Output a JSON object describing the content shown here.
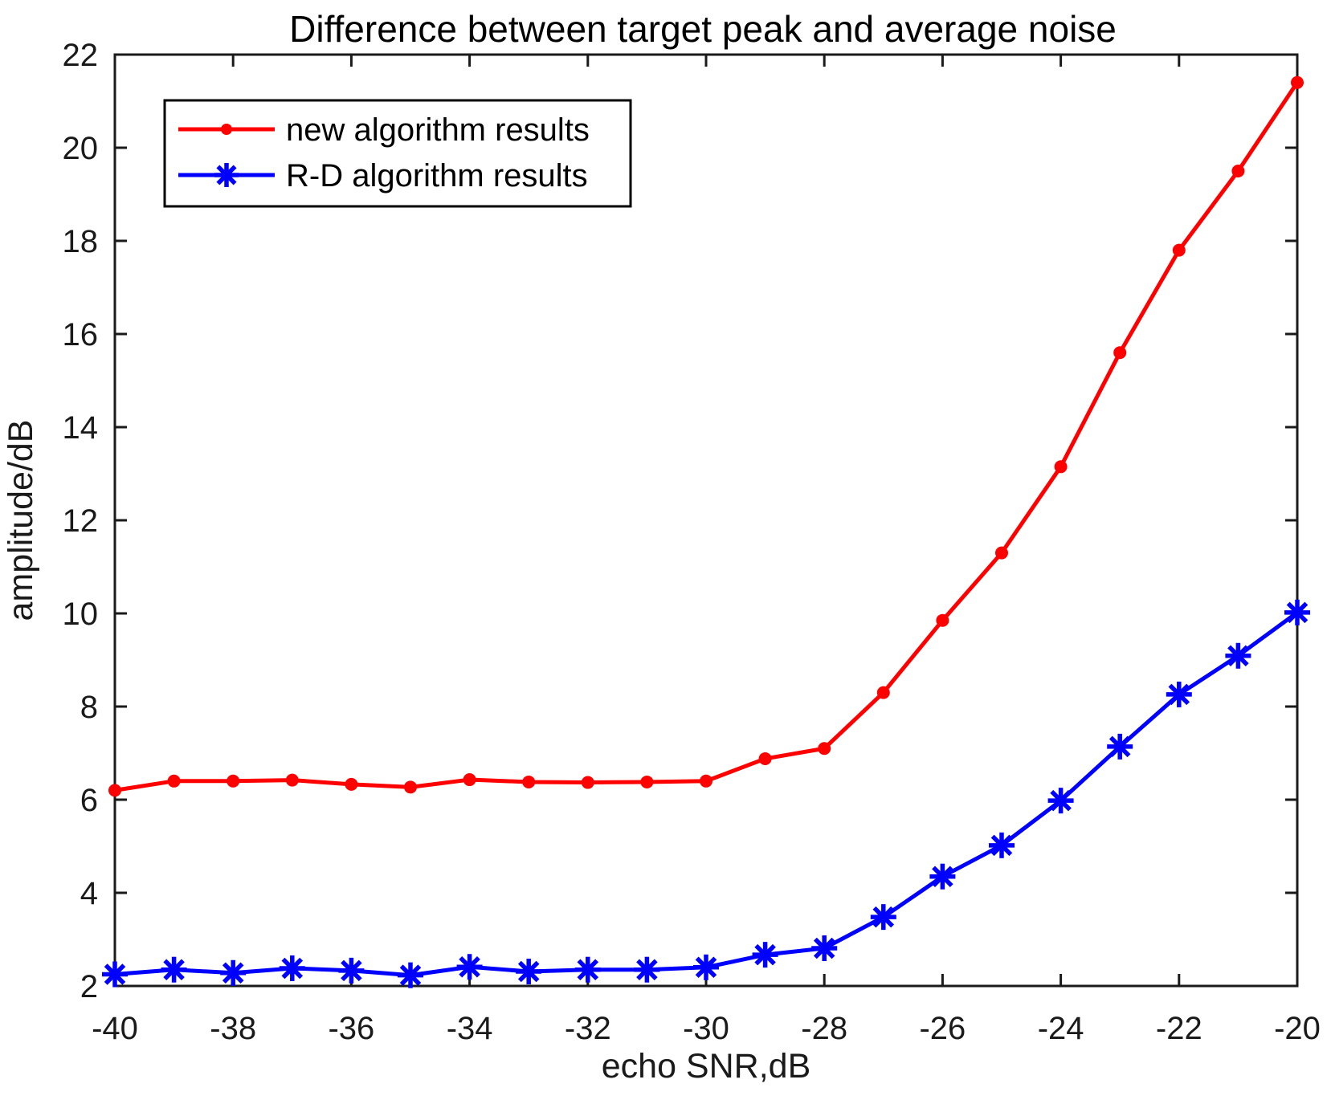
{
  "figure": {
    "title": "Difference between target peak and average noise",
    "xlabel": "echo SNR,dB",
    "ylabel": "amplitude/dB"
  },
  "chart_data": {
    "type": "line",
    "title": "Difference between target peak and average noise",
    "xlabel": "echo SNR,dB",
    "ylabel": "amplitude/dB",
    "x": [
      -40,
      -39,
      -38,
      -37,
      -36,
      -35,
      -34,
      -33,
      -32,
      -31,
      -30,
      -29,
      -28,
      -27,
      -26,
      -25,
      -24,
      -23,
      -22,
      -21,
      -20
    ],
    "series": [
      {
        "name": "new algorithm results",
        "color": "#ff0000",
        "marker": "dot",
        "values": [
          6.2,
          6.4,
          6.4,
          6.42,
          6.33,
          6.27,
          6.43,
          6.38,
          6.37,
          6.38,
          6.4,
          6.88,
          7.1,
          8.3,
          9.85,
          11.3,
          13.15,
          15.6,
          17.8,
          19.5,
          21.4
        ]
      },
      {
        "name": "R-D algorithm results",
        "color": "#0000ff",
        "marker": "asterisk",
        "values": [
          2.25,
          2.35,
          2.28,
          2.38,
          2.33,
          2.23,
          2.41,
          2.31,
          2.35,
          2.35,
          2.4,
          2.67,
          2.81,
          3.48,
          4.35,
          5.02,
          5.98,
          7.14,
          8.26,
          9.09,
          10.02
        ]
      }
    ],
    "xlim": [
      -40,
      -20
    ],
    "ylim": [
      2,
      22
    ],
    "xticks": [
      "-40",
      "-38",
      "-36",
      "-34",
      "-32",
      "-30",
      "-28",
      "-26",
      "-24",
      "-22",
      "-20"
    ],
    "xtick_values": [
      -40,
      -38,
      -36,
      -34,
      -32,
      -30,
      -28,
      -26,
      -24,
      -22,
      -20
    ],
    "yticks": [
      "2",
      "4",
      "6",
      "8",
      "10",
      "12",
      "14",
      "16",
      "18",
      "20",
      "22"
    ],
    "ytick_values": [
      2,
      4,
      6,
      8,
      10,
      12,
      14,
      16,
      18,
      20,
      22
    ],
    "grid": false,
    "legend_position": "top-left",
    "axis_color": "#1a1a1a",
    "background": "#ffffff"
  }
}
